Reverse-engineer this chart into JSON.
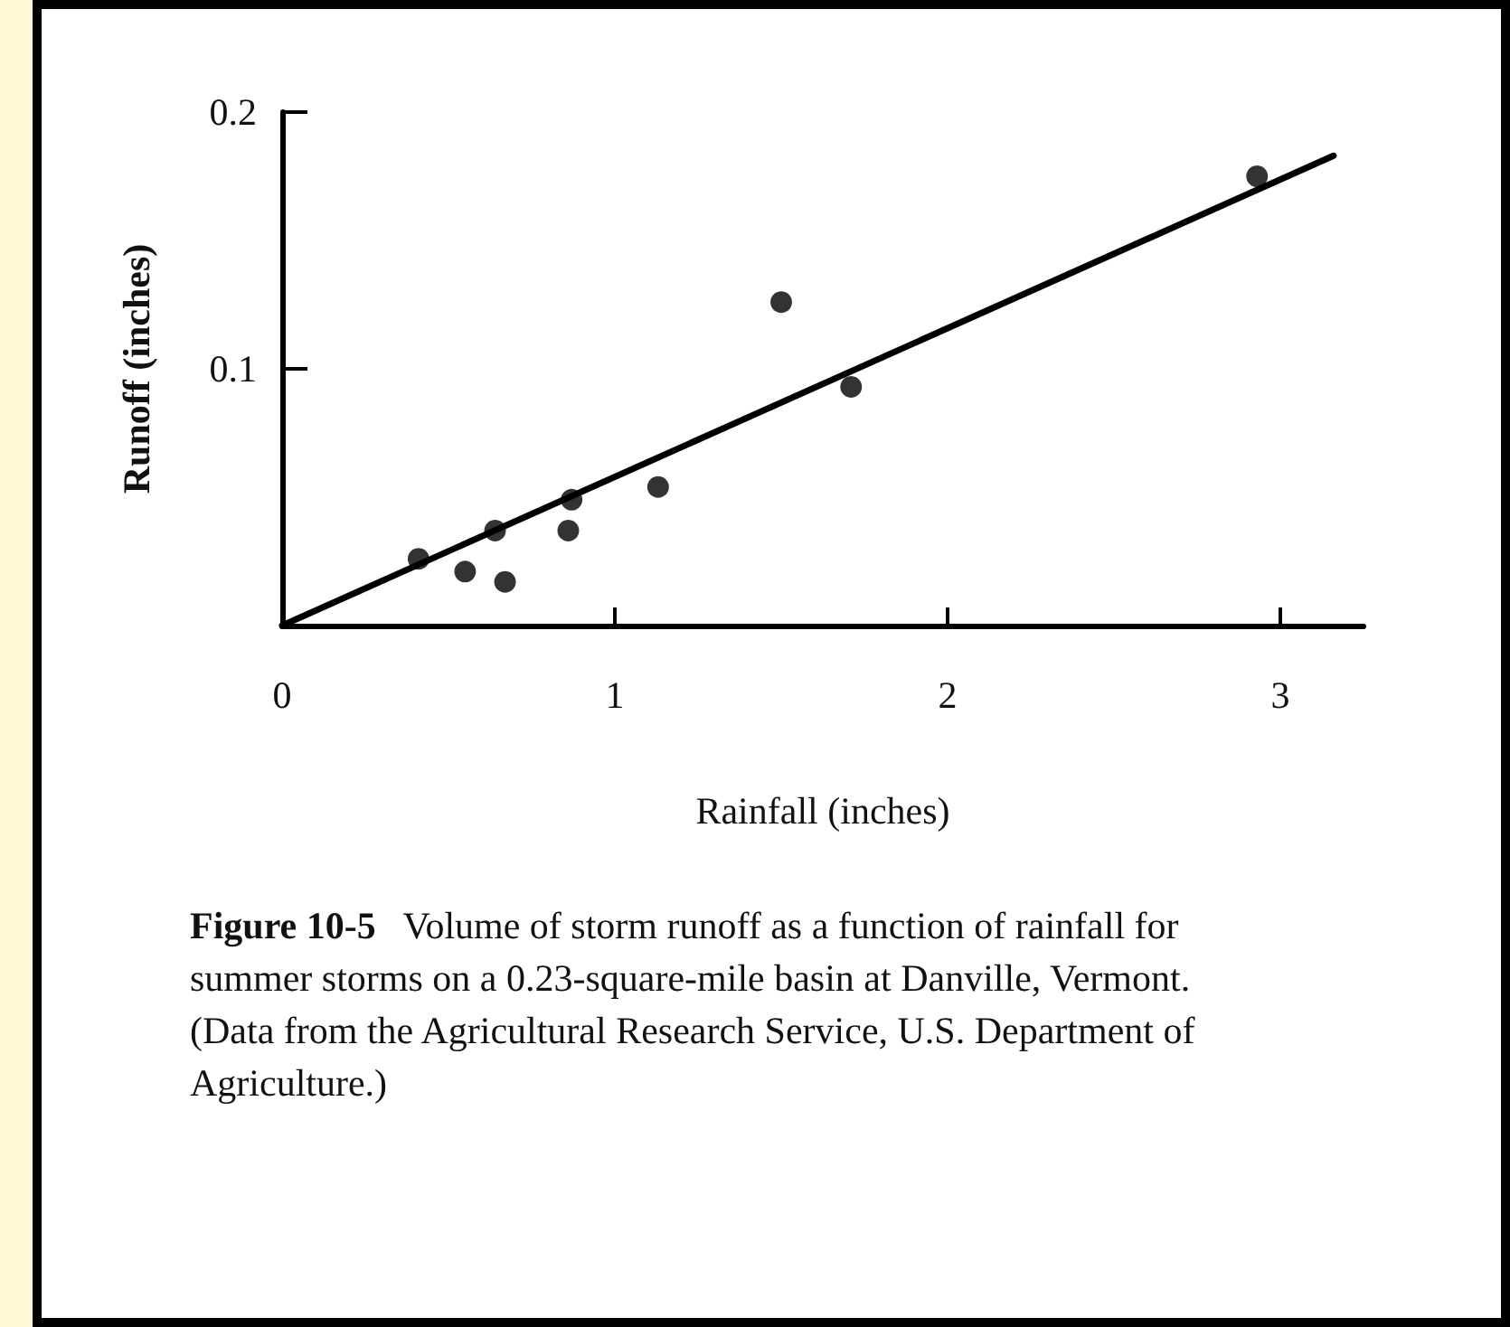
{
  "chart_data": {
    "type": "scatter",
    "xlabel": "Rainfall (inches)",
    "ylabel": "Runoff (inches)",
    "xlim": [
      0,
      3.25
    ],
    "xticks": [
      0,
      1,
      2,
      3
    ],
    "ylim": [
      0,
      0.2
    ],
    "yticks": [
      0.1,
      0.2
    ],
    "grid": false,
    "marker": "circle",
    "annotations": [
      "Figure 10-5",
      "Volume of storm runoff as a function of rainfall for summer storms on a 0.23-square-mile basin at Danville, Vermont. (Data from the Agricultural Research Service, U.S. Department of Agriculture.)"
    ],
    "series": [
      {
        "color": "#000000",
        "x": [
          0.41,
          0.55,
          0.64,
          0.67,
          0.87,
          0.86,
          1.13,
          1.5,
          1.71,
          2.93
        ],
        "values": [
          0.026,
          0.021,
          0.037,
          0.017,
          0.049,
          0.037,
          0.054,
          0.126,
          0.093,
          0.175
        ]
      },
      {
        "type": "line",
        "color": "#000000",
        "marker": "none",
        "line_style": "solid",
        "x": [
          0,
          3.16
        ],
        "values": [
          0,
          0.183
        ]
      }
    ]
  }
}
